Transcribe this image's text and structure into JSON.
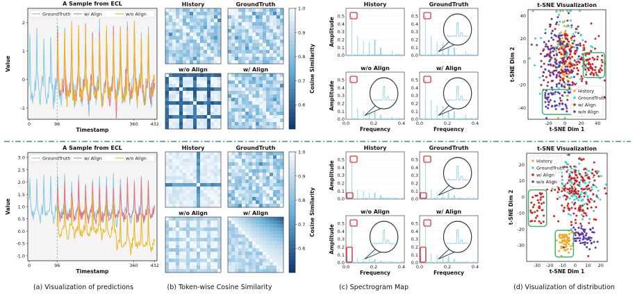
{
  "captions": {
    "a": "(a) Visualization of predictions",
    "b": "(b) Token-wise Cosine Similarity",
    "c": "(c) Spectrogram Map",
    "d": "(d) Visualization of distribution"
  },
  "colors": {
    "groundtruth": "#7ec8e3",
    "with_align": "#e8707a",
    "without_align": "#f2b318",
    "history": "#f5a623",
    "gt_point": "#3fd0d0",
    "w_point": "#d61f1f",
    "wo_point": "#5b3aa8",
    "box": "#3bb36a",
    "spec": "#8fd0ea",
    "divider": "#2a6a8a",
    "heat_hi": "#f3f8fd",
    "heat_lo": "#08306b"
  },
  "chart_data": [
    {
      "id": "pred_top",
      "type": "line",
      "title": "A Sample from ECL",
      "xlabel": "Timestamp",
      "ylabel": "Value",
      "xticks": [
        "0",
        "96",
        "360",
        "432"
      ],
      "yticks": [
        "-1",
        "0",
        "1",
        "2"
      ],
      "xlim": [
        -5,
        440
      ],
      "ylim": [
        -1.4,
        2.5
      ],
      "legend": [
        "GroundTruth",
        "w/ Align",
        "w/o Align"
      ],
      "series": [
        {
          "name": "GroundTruth",
          "x_range": [
            0,
            432
          ],
          "mean": 0.0,
          "amp": 1.8,
          "period": 24
        },
        {
          "name": "w/ Align",
          "x_range": [
            96,
            432
          ],
          "mean": 0.0,
          "amp": 1.7,
          "period": 24
        },
        {
          "name": "w/o Align",
          "x_range": [
            96,
            432
          ],
          "mean": 0.0,
          "amp": 1.6,
          "period": 24
        }
      ]
    },
    {
      "id": "pred_bottom",
      "type": "line",
      "title": "A Sample from ECL",
      "xlabel": "Timestamp",
      "ylabel": "Value",
      "xticks": [
        "0",
        "96",
        "360",
        "432"
      ],
      "yticks": [
        "-1.0",
        "-0.5",
        "0.0",
        "0.5",
        "1.0",
        "1.5",
        "2.0",
        "2.5",
        "3.0"
      ],
      "xlim": [
        -5,
        440
      ],
      "ylim": [
        -1.2,
        3.2
      ],
      "legend": [
        "GroundTruth",
        "w/ Align",
        "w/o Align"
      ],
      "series": [
        {
          "name": "GroundTruth",
          "x_range": [
            0,
            432
          ],
          "mean": 1.0,
          "amp": 1.2,
          "period": 24
        },
        {
          "name": "w/ Align",
          "x_range": [
            96,
            432
          ],
          "mean": 0.9,
          "amp": 1.0,
          "period": 24
        },
        {
          "name": "w/o Align",
          "x_range": [
            96,
            432
          ],
          "mean": 0.2,
          "amp": 1.0,
          "period": 24
        }
      ]
    },
    {
      "id": "heat_top",
      "type": "heatmap",
      "panels": [
        "History",
        "GroundTruth",
        "w/o Align",
        "w/ Align"
      ],
      "colorbar_label": "Cosine Similarity",
      "vmin": 0.5,
      "vmax": 1.0,
      "colorbar_ticks": [
        "1.0",
        "0.9",
        "0.8",
        "0.7",
        "0.6"
      ]
    },
    {
      "id": "heat_bottom",
      "type": "heatmap",
      "panels": [
        "History",
        "GroundTruth",
        "w/o Align",
        "w/ Align"
      ],
      "colorbar_label": "Cosine Similarity",
      "vmin": 0.5,
      "vmax": 1.0,
      "colorbar_ticks": [
        "1.0",
        "0.9",
        "0.8",
        "0.7",
        "0.6"
      ]
    },
    {
      "id": "spec_top",
      "type": "bar",
      "panels": [
        "History",
        "GroundTruth",
        "w/o Align",
        "w/ Align"
      ],
      "xlabel": "Frequency",
      "ylabel": "Amplitude",
      "xticks": [
        "0.0",
        "0.2",
        "0.4"
      ],
      "yticks": [
        "0.0",
        "0.1",
        "0.2",
        "0.3",
        "0.4",
        "0.5"
      ],
      "xlim": [
        0,
        0.42
      ],
      "ylim": [
        0,
        0.6
      ],
      "peaks": [
        {
          "f": 0.042,
          "a": 0.5
        },
        {
          "f": 0.083,
          "a": 0.25
        },
        {
          "f": 0.125,
          "a": 0.18
        },
        {
          "f": 0.167,
          "a": 0.17
        },
        {
          "f": 0.208,
          "a": 0.2
        },
        {
          "f": 0.25,
          "a": 0.1
        },
        {
          "f": 0.33,
          "a": 0.06
        }
      ]
    },
    {
      "id": "spec_bottom",
      "type": "bar",
      "panels": [
        "History",
        "GroundTruth",
        "w/o Align",
        "w/ Align"
      ],
      "xlabel": "Frequency",
      "ylabel": "Amplitude",
      "xticks": [
        "0.0",
        "0.2",
        "0.4"
      ],
      "yticks": [
        "0.0",
        "0.1",
        "0.2",
        "0.3",
        "0.4",
        "0.5"
      ],
      "xlim": [
        0,
        0.42
      ],
      "ylim": [
        0,
        0.6
      ],
      "peaks": [
        {
          "f": 0.042,
          "a": 0.5
        },
        {
          "f": 0.083,
          "a": 0.12
        },
        {
          "f": 0.125,
          "a": 0.1
        },
        {
          "f": 0.167,
          "a": 0.08
        },
        {
          "f": 0.208,
          "a": 0.08
        },
        {
          "f": 0.25,
          "a": 0.05
        }
      ]
    },
    {
      "id": "tsne_top",
      "type": "scatter",
      "title": "t-SNE Visualization",
      "xlabel": "t-SNE Dim 1",
      "ylabel": "t-SNE Dim 2",
      "xticks": [
        "-20",
        "0",
        "20",
        "40"
      ],
      "yticks": [
        "-40",
        "-20",
        "0",
        "20",
        "40"
      ],
      "xlim": [
        -45,
        50
      ],
      "ylim": [
        -50,
        45
      ],
      "legend": [
        "History",
        "GroundTruth",
        "w/ Align",
        "w/o Align"
      ],
      "series": [
        {
          "name": "History",
          "cx": 0,
          "cy": 5,
          "sx": 4,
          "sy": 18,
          "n": 90
        },
        {
          "name": "GroundTruth",
          "cx": 5,
          "cy": 5,
          "sx": 18,
          "sy": 20,
          "n": 120
        },
        {
          "name": "w/ Align",
          "cx": 5,
          "cy": 0,
          "sx": 18,
          "sy": 14,
          "n": 170
        },
        {
          "name": "w/o Align",
          "cx": -8,
          "cy": 0,
          "sx": 14,
          "sy": 20,
          "n": 140
        }
      ]
    },
    {
      "id": "tsne_bottom",
      "type": "scatter",
      "title": "t-SNE Visualization",
      "xlabel": "t-SNE Dim 1",
      "ylabel": "t-SNE Dim 2",
      "xticks": [
        "-30",
        "-20",
        "-10",
        "0",
        "10",
        "20"
      ],
      "yticks": [
        "-30",
        "-20",
        "-10",
        "0",
        "10",
        "20"
      ],
      "xlim": [
        -38,
        25
      ],
      "ylim": [
        -40,
        27
      ],
      "legend": [
        "History",
        "GroundTruth",
        "w/ Align",
        "w/o Align"
      ],
      "series": [
        {
          "name": "History",
          "cx": -8,
          "cy": -28,
          "sx": 3,
          "sy": 3,
          "n": 60
        },
        {
          "name": "GroundTruth",
          "cx": 2,
          "cy": 5,
          "sx": 9,
          "sy": 10,
          "n": 130
        },
        {
          "name": "w/ Align",
          "cx": 0,
          "cy": 5,
          "sx": 10,
          "sy": 10,
          "n": 170
        },
        {
          "name": "w/o Align",
          "cx": 8,
          "cy": -25,
          "sx": 5,
          "sy": 4,
          "n": 60
        }
      ]
    }
  ]
}
